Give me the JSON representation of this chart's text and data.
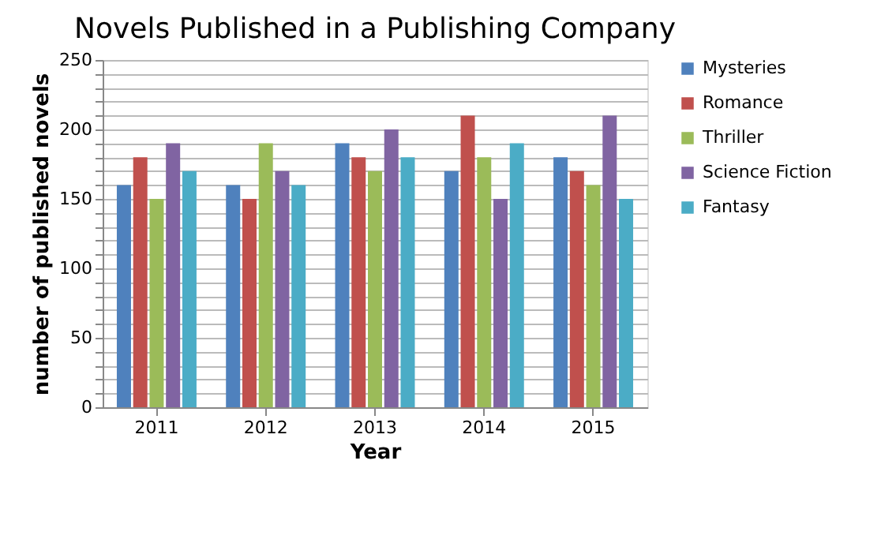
{
  "chart_data": {
    "type": "bar",
    "title": "Novels Published in a Publishing Company",
    "xlabel": "Year",
    "ylabel": "number of published  novels",
    "categories": [
      "2011",
      "2012",
      "2013",
      "2014",
      "2015"
    ],
    "series": [
      {
        "name": "Mysteries",
        "color": "#4f81bd",
        "values": [
          160,
          160,
          190,
          170,
          180
        ]
      },
      {
        "name": "Romance",
        "color": "#c0504d",
        "values": [
          180,
          150,
          180,
          210,
          170
        ]
      },
      {
        "name": "Thriller",
        "color": "#9bbb59",
        "values": [
          150,
          190,
          170,
          180,
          160
        ]
      },
      {
        "name": "Science Fiction",
        "color": "#8064a2",
        "values": [
          190,
          170,
          200,
          150,
          210
        ]
      },
      {
        "name": "Fantasy",
        "color": "#4bacc6",
        "values": [
          170,
          160,
          180,
          190,
          150
        ]
      }
    ],
    "ylim": [
      0,
      250
    ],
    "yticks": [
      0,
      {
        "value": 10,
        "label": null
      },
      {
        "value": 20,
        "label": null
      },
      {
        "value": 30,
        "label": null
      },
      {
        "value": 40,
        "label": null
      },
      50,
      {
        "value": 60,
        "label": null
      },
      {
        "value": 70,
        "label": null
      },
      {
        "value": 80,
        "label": null
      },
      {
        "value": 90,
        "label": null
      },
      100,
      {
        "value": 110,
        "label": null
      },
      {
        "value": 120,
        "label": null
      },
      {
        "value": 130,
        "label": null
      },
      {
        "value": 140,
        "label": null
      },
      150,
      {
        "value": 160,
        "label": null
      },
      {
        "value": 170,
        "label": null
      },
      {
        "value": 180,
        "label": null
      },
      {
        "value": 190,
        "label": null
      },
      200,
      {
        "value": 210,
        "label": null
      },
      {
        "value": 220,
        "label": null
      },
      {
        "value": 230,
        "label": null
      },
      {
        "value": 240,
        "label": null
      },
      250
    ],
    "grid": "y",
    "legend": "right"
  }
}
